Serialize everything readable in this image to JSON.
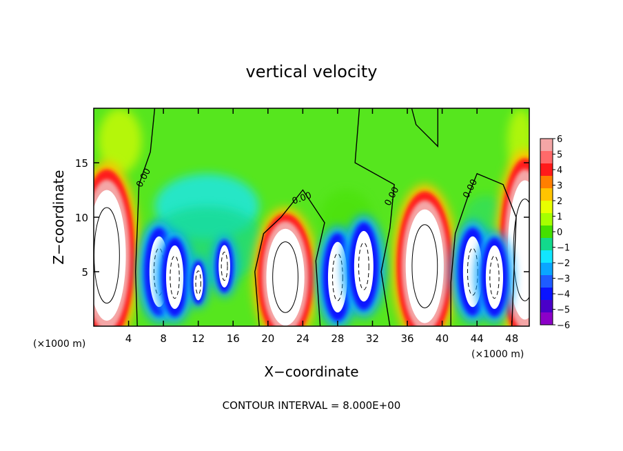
{
  "chart_data": {
    "type": "heatmap",
    "title": "vertical velocity",
    "xlabel": "X−coordinate",
    "ylabel": "Z−coordinate",
    "x_unit_left": "(×1000 m)",
    "x_unit_right": "(×1000 m)",
    "footer": "CONTOUR INTERVAL = 8.000E+00",
    "xlim": [
      0,
      50
    ],
    "ylim": [
      0,
      20
    ],
    "x_ticks": [
      4,
      8,
      12,
      16,
      20,
      24,
      28,
      32,
      36,
      40,
      44,
      48
    ],
    "y_ticks": [
      5,
      10,
      15
    ],
    "zero_contour_label": "0.00",
    "colorbar": {
      "ticks": [
        "6",
        "5",
        "4",
        "3",
        "2",
        "1",
        "0",
        "−1",
        "−2",
        "−3",
        "−4",
        "−5",
        "−6"
      ],
      "colors": [
        "#f4a6a6",
        "#ff6a6a",
        "#ff1a1a",
        "#ff7f00",
        "#ffc400",
        "#e8ff00",
        "#a6ff00",
        "#44e000",
        "#12d98c",
        "#12e6ff",
        "#0aa6ff",
        "#1e5cff",
        "#0a14ff",
        "#4a00c8",
        "#8c00c8"
      ]
    },
    "updrafts": [
      {
        "x": 1.5,
        "z": 6.5,
        "strength": 1.0
      },
      {
        "x": 22,
        "z": 4.5,
        "strength": 1.0
      },
      {
        "x": 38,
        "z": 5.5,
        "strength": 1.0
      },
      {
        "x": 49.5,
        "z": 7,
        "strength": 0.9
      }
    ],
    "downdrafts": [
      {
        "x": 7.5,
        "z": 5,
        "strength": 1.0
      },
      {
        "x": 9.3,
        "z": 4.5,
        "strength": 0.9
      },
      {
        "x": 12,
        "z": 4,
        "strength": 0.5
      },
      {
        "x": 15,
        "z": 5.5,
        "strength": 0.6
      },
      {
        "x": 28,
        "z": 4.5,
        "strength": 1.0
      },
      {
        "x": 31,
        "z": 5.5,
        "strength": 1.0
      },
      {
        "x": 43.5,
        "z": 5,
        "strength": 1.0
      },
      {
        "x": 46,
        "z": 4.5,
        "strength": 0.9
      }
    ]
  }
}
